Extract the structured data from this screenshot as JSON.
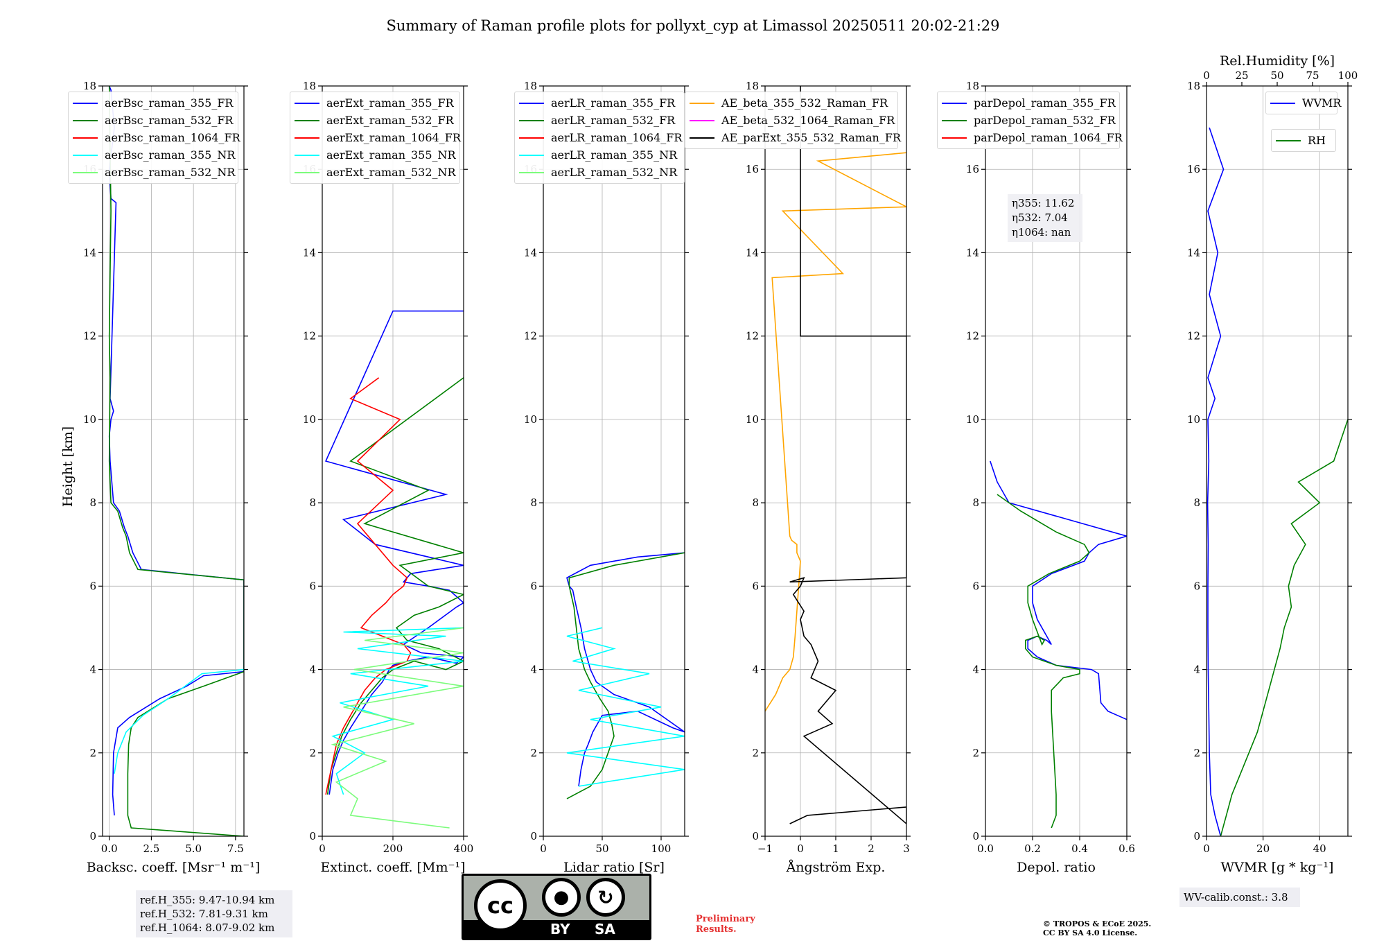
{
  "title": "Summary of Raman profile plots for pollyxt_cyp at Limassol 20250511 20:02-21:29",
  "ylabel": "Height [km]",
  "colors": {
    "c355_FR": "#0000ff",
    "c532_FR": "#008000",
    "c1064_FR": "#ff0000",
    "c355_NR": "#00ffff",
    "c532_NR": "#7cfc7c",
    "orange": "#ffa500",
    "magenta": "#ff00ff",
    "black": "#000000",
    "grid": "#b0b0b0"
  },
  "chart_data": [
    {
      "type": "line",
      "xlabel": "Backsc. coeff. [Msr⁻¹ m⁻¹]",
      "xlim": [
        -0.4,
        8.0
      ],
      "ylim": [
        0,
        18
      ],
      "xticks": [
        "0.0",
        "2.5",
        "5.0",
        "7.5"
      ],
      "xtick_values": [
        0,
        2.5,
        5,
        7.5
      ],
      "yticks": [
        "0",
        "2",
        "4",
        "6",
        "8",
        "10",
        "12",
        "14",
        "16",
        "18"
      ],
      "legend": [
        "aerBsc_raman_355_FR",
        "aerBsc_raman_532_FR",
        "aerBsc_raman_1064_FR",
        "aerBsc_raman_355_NR",
        "aerBsc_raman_532_NR"
      ],
      "series": [
        {
          "name": "aerBsc_raman_355_FR",
          "color": "#0000ff",
          "x": [
            0.3,
            0.2,
            0.25,
            0.5,
            1.2,
            3.0,
            4.6,
            5.6,
            8.0,
            8.0,
            1.9,
            1.4,
            1.1,
            0.9,
            0.6,
            0.25,
            0.05,
            0.0,
            0.1,
            0.25,
            0.05,
            0.4,
            0.1,
            0.0,
            0.3,
            0.1,
            0.0
          ],
          "y": [
            0.5,
            1.0,
            2.0,
            2.6,
            2.85,
            3.3,
            3.6,
            3.85,
            3.95,
            6.15,
            6.4,
            6.8,
            7.2,
            7.4,
            7.8,
            8.0,
            9.0,
            9.6,
            10.0,
            10.2,
            10.5,
            15.2,
            15.3,
            16.0,
            17.0,
            17.9,
            18.0
          ]
        },
        {
          "name": "aerBsc_raman_532_FR",
          "color": "#008000",
          "x": [
            8.0,
            1.3,
            1.1,
            1.1,
            1.15,
            1.3,
            1.7,
            3.5,
            5.6,
            8.0,
            8.0,
            1.7,
            1.2,
            1.0,
            0.8,
            0.5,
            0.1,
            0.0,
            0.05,
            0.0,
            0.1,
            0.0
          ],
          "y": [
            0.0,
            0.2,
            0.5,
            1.5,
            2.2,
            2.6,
            2.85,
            3.3,
            3.6,
            3.95,
            6.15,
            6.4,
            6.8,
            7.2,
            7.4,
            7.8,
            8.0,
            9.0,
            11.0,
            12.0,
            15.0,
            18.0
          ]
        },
        {
          "name": "aerBsc_raman_355_NR",
          "color": "#00ffff",
          "x": [
            0.3,
            0.5,
            1.0,
            2.0,
            3.5,
            4.5,
            5.5,
            8.0
          ],
          "y": [
            1.5,
            2.0,
            2.5,
            2.9,
            3.3,
            3.6,
            3.9,
            4.0
          ]
        }
      ],
      "textbox": [
        "ref.H_355: 9.47-10.94 km",
        "ref.H_532: 7.81-9.31 km",
        "ref.H_1064: 8.07-9.02 km"
      ]
    },
    {
      "type": "line",
      "xlabel": "Extinct. coeff. [Mm⁻¹]",
      "xlim": [
        0,
        400
      ],
      "ylim": [
        0,
        18
      ],
      "xticks": [
        "0",
        "200",
        "400"
      ],
      "xtick_values": [
        0,
        200,
        400
      ],
      "yticks": [
        "0",
        "2",
        "4",
        "6",
        "8",
        "10",
        "12",
        "14",
        "16",
        "18"
      ],
      "legend": [
        "aerExt_raman_355_FR",
        "aerExt_raman_532_FR",
        "aerExt_raman_1064_FR",
        "aerExt_raman_355_NR",
        "aerExt_raman_532_NR"
      ],
      "series": [
        {
          "name": "aerExt_raman_355_FR",
          "color": "#0000ff",
          "x": [
            20,
            30,
            45,
            60,
            80,
            110,
            140,
            170,
            190,
            200,
            240,
            300,
            380,
            400,
            280,
            230,
            300,
            380,
            400,
            360,
            300,
            230,
            250,
            400,
            150,
            60,
            350,
            10,
            200,
            400
          ],
          "y": [
            1.0,
            1.6,
            2.0,
            2.3,
            2.6,
            3.0,
            3.4,
            3.7,
            4.0,
            4.1,
            4.2,
            4.3,
            4.15,
            4.3,
            4.4,
            4.6,
            5.0,
            5.5,
            5.6,
            5.9,
            6.0,
            6.1,
            6.3,
            6.5,
            7.0,
            7.6,
            8.2,
            9.0,
            12.6,
            12.6
          ]
        },
        {
          "name": "aerExt_raman_532_FR",
          "color": "#008000",
          "x": [
            15,
            25,
            40,
            55,
            80,
            110,
            140,
            170,
            200,
            260,
            350,
            400,
            330,
            240,
            210,
            260,
            330,
            400,
            300,
            220,
            400,
            120,
            300,
            80,
            400
          ],
          "y": [
            1.0,
            1.6,
            2.0,
            2.4,
            2.8,
            3.2,
            3.5,
            3.8,
            4.0,
            4.2,
            4.0,
            4.2,
            4.5,
            4.7,
            5.0,
            5.3,
            5.5,
            5.8,
            6.0,
            6.5,
            6.8,
            7.5,
            8.3,
            9.0,
            11.0
          ]
        },
        {
          "name": "aerExt_raman_1064_FR",
          "color": "#ff0000",
          "x": [
            10,
            20,
            30,
            40,
            60,
            80,
            100,
            120,
            150,
            180,
            210,
            240,
            250,
            230,
            200,
            110,
            140,
            180,
            200,
            230,
            240,
            200,
            150,
            100,
            200,
            100,
            220,
            80,
            160
          ],
          "y": [
            1.0,
            1.4,
            1.8,
            2.2,
            2.6,
            2.9,
            3.2,
            3.5,
            3.8,
            4.0,
            4.1,
            4.2,
            4.4,
            4.6,
            4.7,
            5.0,
            5.3,
            5.6,
            5.8,
            6.0,
            6.2,
            6.5,
            7.0,
            7.5,
            8.3,
            9.0,
            10.0,
            10.5,
            11.0
          ]
        },
        {
          "name": "aerExt_raman_355_NR",
          "color": "#00ffff",
          "x": [
            60,
            40,
            120,
            30,
            200,
            50,
            300,
            80,
            400,
            100,
            350,
            60,
            400
          ],
          "y": [
            1.0,
            1.5,
            2.0,
            2.4,
            2.8,
            3.2,
            3.6,
            3.9,
            4.2,
            4.5,
            4.8,
            4.9,
            5.0
          ]
        },
        {
          "name": "aerExt_raman_532_NR",
          "color": "#7cfc7c",
          "x": [
            360,
            80,
            100,
            40,
            180,
            30,
            260,
            60,
            400,
            90,
            400,
            120,
            400
          ],
          "y": [
            0.2,
            0.5,
            0.9,
            1.3,
            1.8,
            2.2,
            2.7,
            3.1,
            3.6,
            4.0,
            4.4,
            4.7,
            5.0
          ]
        }
      ]
    },
    {
      "type": "line",
      "xlabel": "Lidar ratio [Sr]",
      "xlim": [
        0,
        120
      ],
      "ylim": [
        0,
        18
      ],
      "xticks": [
        "0",
        "50",
        "100"
      ],
      "xtick_values": [
        0,
        50,
        100
      ],
      "yticks": [
        "0",
        "2",
        "4",
        "6",
        "8",
        "10",
        "12",
        "14",
        "16",
        "18"
      ],
      "legend": [
        "aerLR_raman_355_FR",
        "aerLR_raman_532_FR",
        "aerLR_raman_1064_FR",
        "aerLR_raman_355_NR",
        "aerLR_raman_532_NR"
      ],
      "series": [
        {
          "name": "aerLR_raman_355_FR",
          "color": "#0000ff",
          "x": [
            30,
            32,
            35,
            38,
            42,
            50,
            80,
            110,
            120,
            90,
            60,
            45,
            40,
            35,
            32,
            28,
            25,
            22,
            20,
            40,
            80,
            120
          ],
          "y": [
            1.2,
            1.6,
            2.0,
            2.2,
            2.5,
            2.9,
            3.0,
            2.6,
            2.5,
            3.1,
            3.4,
            3.7,
            4.0,
            4.5,
            5.0,
            5.5,
            5.9,
            6.0,
            6.2,
            6.5,
            6.7,
            6.8
          ]
        },
        {
          "name": "aerLR_raman_532_FR",
          "color": "#008000",
          "x": [
            20,
            40,
            50,
            55,
            60,
            58,
            55,
            48,
            40,
            35,
            30,
            28,
            26,
            22,
            22,
            60,
            120
          ],
          "y": [
            0.9,
            1.2,
            1.6,
            2.0,
            2.4,
            2.7,
            3.0,
            3.3,
            3.7,
            4.0,
            4.5,
            5.0,
            5.5,
            6.0,
            6.2,
            6.5,
            6.8
          ]
        },
        {
          "name": "aerLR_raman_355_NR",
          "color": "#00ffff",
          "x": [
            30,
            120,
            20,
            120,
            40,
            100,
            30,
            90,
            25,
            60,
            20,
            50
          ],
          "y": [
            1.2,
            1.6,
            2.0,
            2.4,
            2.8,
            3.1,
            3.5,
            3.9,
            4.2,
            4.5,
            4.8,
            5.0
          ]
        }
      ]
    },
    {
      "type": "line",
      "xlabel": "Ångström Exp.",
      "xlim": [
        -1,
        3
      ],
      "ylim": [
        0,
        18
      ],
      "xticks": [
        "−1",
        "0",
        "1",
        "2",
        "3"
      ],
      "xtick_values": [
        -1,
        0,
        1,
        2,
        3
      ],
      "yticks": [
        "0",
        "2",
        "4",
        "6",
        "8",
        "10",
        "12",
        "14",
        "16",
        "18"
      ],
      "legend": [
        "AE_beta_355_532_Raman_FR",
        "AE_beta_532_1064_Raman_FR",
        "AE_parExt_355_532_Raman_FR"
      ],
      "series": [
        {
          "name": "AE_beta_355_532_Raman_FR",
          "color": "#ffa500",
          "x": [
            -1.0,
            -0.7,
            -0.5,
            -0.3,
            -0.2,
            -0.15,
            -0.1,
            -0.05,
            0.0,
            -0.1,
            -0.1,
            -0.25,
            -0.3,
            -0.8,
            1.2,
            -0.5,
            3.0,
            0.5,
            3.0
          ],
          "y": [
            3.0,
            3.4,
            3.8,
            4.0,
            4.3,
            4.8,
            5.4,
            6.0,
            6.6,
            6.8,
            7.0,
            7.1,
            7.2,
            13.4,
            13.5,
            15.0,
            15.1,
            16.2,
            16.4
          ]
        },
        {
          "name": "AE_parExt_355_532_Raman_FR",
          "color": "#000000",
          "x": [
            -0.3,
            0.2,
            3.0,
            3.0,
            0.1,
            0.9,
            0.5,
            1.0,
            0.3,
            0.5,
            0.3,
            0.1,
            0.0,
            0.1,
            -0.2,
            0.0,
            0.1,
            -0.3,
            3.0,
            3.0,
            0.0,
            0.0
          ],
          "y": [
            0.3,
            0.5,
            0.7,
            0.3,
            2.4,
            2.7,
            3.0,
            3.5,
            3.8,
            4.2,
            4.6,
            4.8,
            5.2,
            5.4,
            5.8,
            6.0,
            6.2,
            6.1,
            6.2,
            12.0,
            12.0,
            18.0
          ]
        }
      ],
      "highlight_points": [
        {
          "x": 0.0,
          "y": 12.4
        },
        {
          "x": 0.0,
          "y": 13.1
        }
      ]
    },
    {
      "type": "line",
      "xlabel": "Depol. ratio",
      "xlim": [
        0,
        0.6
      ],
      "ylim": [
        0,
        18
      ],
      "xticks": [
        "0.0",
        "0.2",
        "0.4",
        "0.6"
      ],
      "xtick_values": [
        0,
        0.2,
        0.4,
        0.6
      ],
      "yticks": [
        "0",
        "2",
        "4",
        "6",
        "8",
        "10",
        "12",
        "14",
        "16",
        "18"
      ],
      "legend": [
        "parDepol_raman_355_FR",
        "parDepol_raman_532_FR",
        "parDepol_raman_1064_FR"
      ],
      "series": [
        {
          "name": "parDepol_raman_355_FR",
          "color": "#0000ff",
          "x": [
            0.6,
            0.52,
            0.49,
            0.48,
            0.45,
            0.3,
            0.22,
            0.18,
            0.18,
            0.22,
            0.26,
            0.28,
            0.22,
            0.2,
            0.2,
            0.28,
            0.42,
            0.44,
            0.48,
            0.6,
            0.1,
            0.05,
            0.02
          ],
          "y": [
            2.8,
            3.0,
            3.2,
            3.9,
            4.0,
            4.1,
            4.3,
            4.5,
            4.7,
            4.8,
            4.7,
            4.6,
            5.2,
            5.6,
            6.0,
            6.3,
            6.6,
            6.8,
            7.0,
            7.2,
            8.0,
            8.5,
            9.0
          ]
        },
        {
          "name": "parDepol_raman_532_FR",
          "color": "#008000",
          "x": [
            0.28,
            0.3,
            0.3,
            0.29,
            0.28,
            0.28,
            0.33,
            0.4,
            0.4,
            0.3,
            0.2,
            0.17,
            0.17,
            0.22,
            0.25,
            0.24,
            0.2,
            0.18,
            0.18,
            0.27,
            0.4,
            0.44,
            0.42,
            0.3,
            0.15,
            0.05
          ],
          "y": [
            0.2,
            0.5,
            1.0,
            2.0,
            3.0,
            3.5,
            3.8,
            3.9,
            4.0,
            4.1,
            4.3,
            4.5,
            4.7,
            4.8,
            4.7,
            4.6,
            5.2,
            5.6,
            6.0,
            6.3,
            6.6,
            6.8,
            7.0,
            7.3,
            7.8,
            8.2
          ]
        }
      ],
      "textbox": [
        "η355: 11.62",
        "η532: 7.04",
        "η1064: nan"
      ]
    },
    {
      "type": "line",
      "xlabel": "WVMR [g * kg⁻¹]",
      "x2label": "Rel.Humidity [%]",
      "xlim": [
        0,
        50
      ],
      "x2lim": [
        0,
        100
      ],
      "ylim": [
        0,
        18
      ],
      "xticks": [
        "0",
        "20",
        "40"
      ],
      "xtick_values": [
        0,
        20,
        40
      ],
      "x2ticks": [
        "0",
        "25",
        "50",
        "75",
        "100"
      ],
      "x2tick_values": [
        0,
        25,
        50,
        75,
        100
      ],
      "yticks": [
        "0",
        "2",
        "4",
        "6",
        "8",
        "10",
        "12",
        "14",
        "16",
        "18"
      ],
      "legend": [
        "WVMR",
        "RH"
      ],
      "series": [
        {
          "name": "WVMR",
          "color": "#0000ff",
          "x": [
            5,
            3,
            1.5,
            1.0,
            0.8,
            0.6,
            0.5,
            0.5,
            0.6,
            0.4,
            0.8,
            0.5,
            3,
            0.5,
            5,
            1,
            4,
            0.5,
            6,
            1
          ],
          "y": [
            0.0,
            0.5,
            1.0,
            2.0,
            3.0,
            4.0,
            5.0,
            6.0,
            7.0,
            8.0,
            9.0,
            10.0,
            10.5,
            11.0,
            12.0,
            13.0,
            14.0,
            15.0,
            16.0,
            17.0
          ]
        },
        {
          "name": "RH",
          "color": "#008000",
          "x2": [
            10,
            14,
            18,
            24,
            30,
            36,
            40,
            44,
            48,
            52,
            55,
            60,
            58,
            62,
            70,
            60,
            80,
            65,
            90,
            100
          ],
          "y": [
            0.0,
            0.5,
            1.0,
            1.5,
            2.0,
            2.5,
            3.0,
            3.5,
            4.0,
            4.5,
            5.0,
            5.5,
            6.0,
            6.5,
            7.0,
            7.5,
            8.0,
            8.5,
            9.0,
            10.0
          ]
        }
      ],
      "textbox": [
        "WV-calib.const.: 3.8"
      ]
    }
  ],
  "license": {
    "cc": "cc",
    "by": "BY",
    "sa": "SA"
  },
  "preliminary": [
    "Preliminary",
    "Results."
  ],
  "copyright": [
    "© TROPOS & ECoE 2025.",
    "CC BY SA 4.0 License."
  ]
}
